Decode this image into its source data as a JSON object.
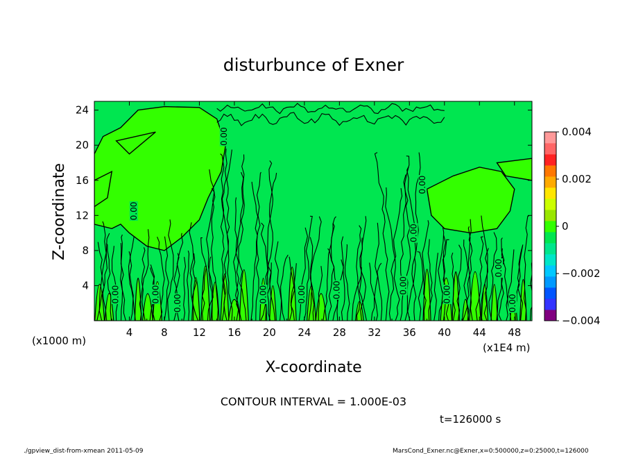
{
  "chart_data": {
    "type": "heatmap",
    "title": "disturbunce of Exner",
    "xlabel": "X-coordinate",
    "ylabel": "Z-coordinate",
    "x_unit_label": "(x1000 m)",
    "x_scale_label": "(x1E4 m)",
    "xlim": [
      0,
      50
    ],
    "ylim": [
      0,
      25
    ],
    "x_ticks": [
      4,
      8,
      12,
      16,
      20,
      24,
      28,
      32,
      36,
      40,
      44,
      48
    ],
    "y_ticks": [
      4,
      8,
      12,
      16,
      20,
      24
    ],
    "colorbar": {
      "min": -0.004,
      "max": 0.004,
      "tick_labels": [
        "0.004",
        "0.002",
        "0",
        "−0.002",
        "−0.004"
      ],
      "colors": [
        "#800080",
        "#3333ff",
        "#0055ff",
        "#0099ff",
        "#00c8ff",
        "#00e6c8",
        "#00e68c",
        "#00e650",
        "#33ff00",
        "#99e600",
        "#ccff00",
        "#ffe600",
        "#ffaa00",
        "#ff7700",
        "#ff2222",
        "#ff6666",
        "#ff9999"
      ]
    },
    "dominant_colors": {
      "near_zero_negative": "#00e650",
      "near_zero_positive": "#33ff00"
    },
    "contour_label": "0.00",
    "contour_interval_text": "CONTOUR INTERVAL = 1.000E-03",
    "time_text": "t=126000 s"
  },
  "footer": {
    "left": "./gpview_dist-from-xmean  2011-05-09",
    "right": "MarsCond_Exner.nc@Exner,x=0:500000,z=0:25000,t=126000"
  }
}
